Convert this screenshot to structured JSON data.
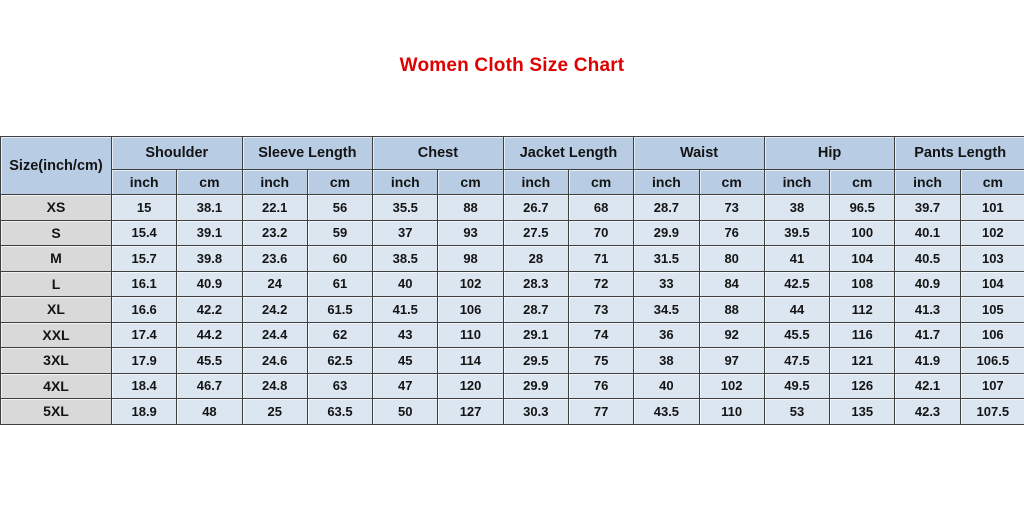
{
  "page": {
    "title": "Women Cloth Size Chart"
  },
  "colors": {
    "title_red": "#e00000",
    "header_blue": "#b8cce4",
    "cell_blue": "#dce6f1",
    "size_column_gray": "#d9d9d9",
    "border_dark": "#3f3f3f",
    "background": "#ffffff"
  },
  "chart_data": {
    "type": "table",
    "title": "Women Cloth Size Chart",
    "corner_header": "Size(inch/cm)",
    "column_groups": [
      "Shoulder",
      "Sleeve Length",
      "Chest",
      "Jacket Length",
      "Waist",
      "Hip",
      "Pants Length"
    ],
    "unit_subheaders": [
      "inch",
      "cm"
    ],
    "rows": [
      {
        "size": "XS",
        "values": [
          "15",
          "38.1",
          "22.1",
          "56",
          "35.5",
          "88",
          "26.7",
          "68",
          "28.7",
          "73",
          "38",
          "96.5",
          "39.7",
          "101"
        ]
      },
      {
        "size": "S",
        "values": [
          "15.4",
          "39.1",
          "23.2",
          "59",
          "37",
          "93",
          "27.5",
          "70",
          "29.9",
          "76",
          "39.5",
          "100",
          "40.1",
          "102"
        ]
      },
      {
        "size": "M",
        "values": [
          "15.7",
          "39.8",
          "23.6",
          "60",
          "38.5",
          "98",
          "28",
          "71",
          "31.5",
          "80",
          "41",
          "104",
          "40.5",
          "103"
        ]
      },
      {
        "size": "L",
        "values": [
          "16.1",
          "40.9",
          "24",
          "61",
          "40",
          "102",
          "28.3",
          "72",
          "33",
          "84",
          "42.5",
          "108",
          "40.9",
          "104"
        ]
      },
      {
        "size": "XL",
        "values": [
          "16.6",
          "42.2",
          "24.2",
          "61.5",
          "41.5",
          "106",
          "28.7",
          "73",
          "34.5",
          "88",
          "44",
          "112",
          "41.3",
          "105"
        ]
      },
      {
        "size": "XXL",
        "values": [
          "17.4",
          "44.2",
          "24.4",
          "62",
          "43",
          "110",
          "29.1",
          "74",
          "36",
          "92",
          "45.5",
          "116",
          "41.7",
          "106"
        ]
      },
      {
        "size": "3XL",
        "values": [
          "17.9",
          "45.5",
          "24.6",
          "62.5",
          "45",
          "114",
          "29.5",
          "75",
          "38",
          "97",
          "47.5",
          "121",
          "41.9",
          "106.5"
        ]
      },
      {
        "size": "4XL",
        "values": [
          "18.4",
          "46.7",
          "24.8",
          "63",
          "47",
          "120",
          "29.9",
          "76",
          "40",
          "102",
          "49.5",
          "126",
          "42.1",
          "107"
        ]
      },
      {
        "size": "5XL",
        "values": [
          "18.9",
          "48",
          "25",
          "63.5",
          "50",
          "127",
          "30.3",
          "77",
          "43.5",
          "110",
          "53",
          "135",
          "42.3",
          "107.5"
        ]
      }
    ]
  }
}
